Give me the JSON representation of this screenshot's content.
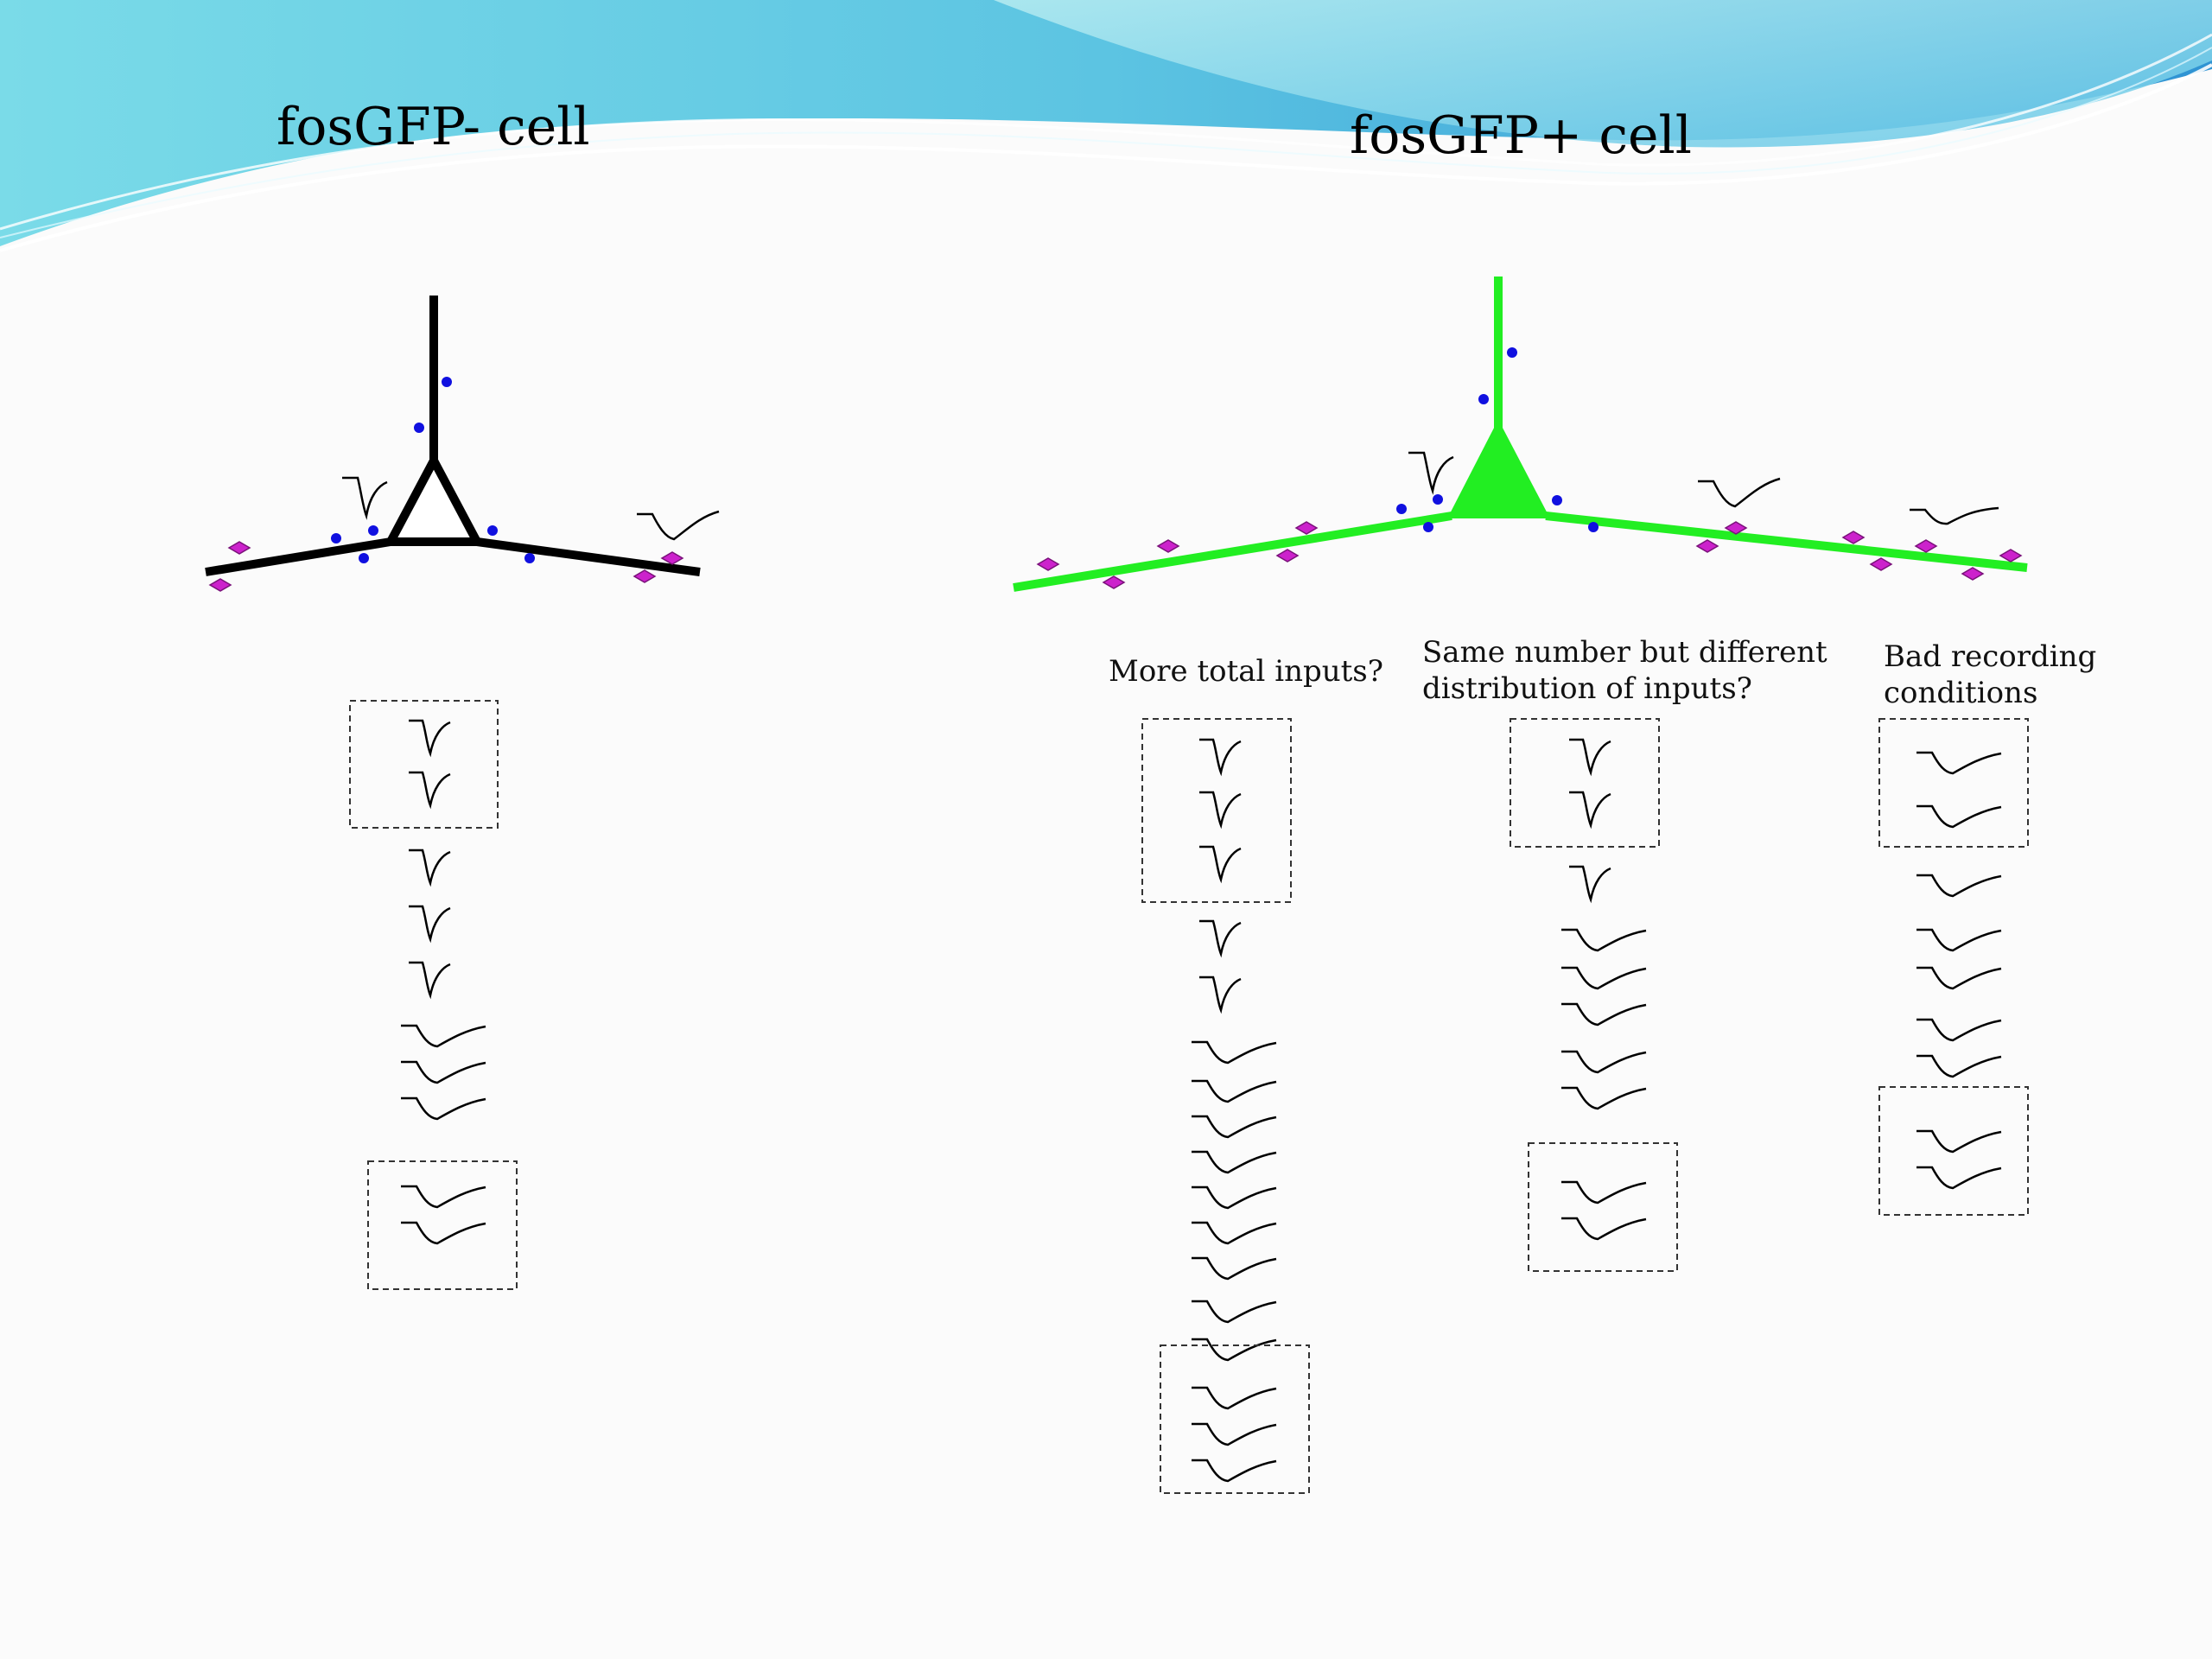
{
  "slide": {
    "left_title": "fosGFP- cell",
    "right_title": "fosGFP+ cell"
  },
  "hypotheses": [
    {
      "line1": "More total inputs?",
      "line2": ""
    },
    {
      "line1": "Same number but different",
      "line2": "distribution of inputs?"
    },
    {
      "line1": "Bad recording",
      "line2": "conditions"
    }
  ],
  "colors": {
    "header_gradient_start": "#6fd6e6",
    "header_gradient_end": "#2e8fd0",
    "left_neuron": "#000000",
    "right_neuron": "#22ee22",
    "synapse_dot": "#1010e0",
    "spine_diamond": "#cc22cc",
    "dashed_box": "#333333"
  },
  "icons": {
    "fast_event": "fast-epsc-trace-icon",
    "slow_event": "slow-epsc-trace-icon"
  },
  "trace_columns": [
    {
      "name": "fosGFP- cell column",
      "sequence": [
        "fast",
        "fast",
        "fast",
        "fast",
        "fast",
        "slow",
        "slow",
        "slow",
        "slow",
        "slow"
      ],
      "boxed_groups": [
        [
          0,
          1
        ],
        [
          8,
          9
        ]
      ]
    },
    {
      "name": "More total inputs? column",
      "sequence": [
        "fast",
        "fast",
        "fast",
        "fast",
        "fast",
        "slow",
        "slow",
        "slow",
        "slow",
        "slow",
        "slow",
        "slow",
        "slow",
        "slow",
        "slow",
        "slow",
        "slow"
      ],
      "boxed_groups": [
        [
          0,
          2
        ],
        [
          14,
          16
        ]
      ]
    },
    {
      "name": "Same number but different distribution column",
      "sequence": [
        "fast",
        "fast",
        "fast",
        "slow",
        "slow",
        "slow",
        "slow",
        "slow",
        "slow",
        "slow"
      ],
      "boxed_groups": [
        [
          0,
          1
        ],
        [
          8,
          9
        ]
      ]
    },
    {
      "name": "Bad recording conditions column",
      "sequence": [
        "slow",
        "slow",
        "slow",
        "slow",
        "slow",
        "slow",
        "slow",
        "slow",
        "slow"
      ],
      "boxed_groups": [
        [
          0,
          1
        ],
        [
          7,
          8
        ]
      ]
    }
  ]
}
